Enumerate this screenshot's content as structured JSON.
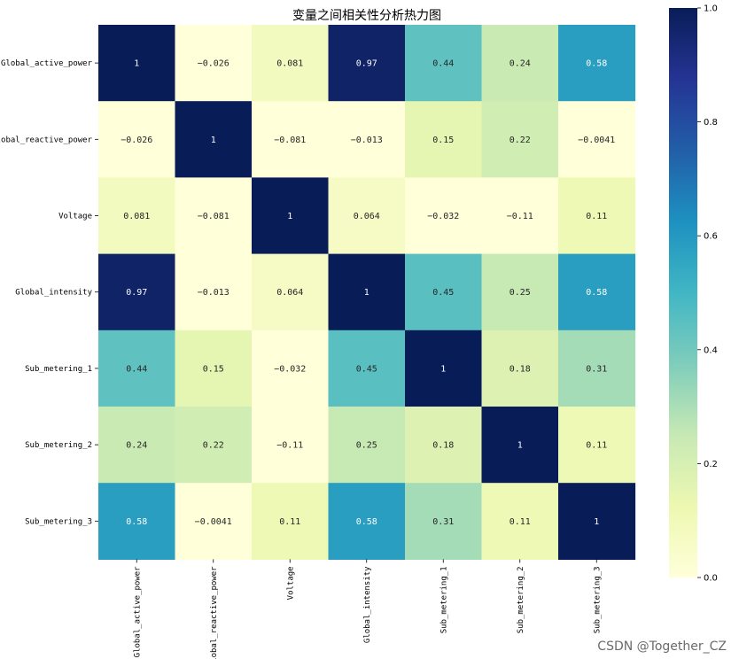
{
  "chart_data": {
    "type": "heatmap",
    "title": "变量之间相关性分析热力图",
    "labels": [
      "Global_active_power",
      "Global_reactive_power",
      "Voltage",
      "Global_intensity",
      "Sub_metering_1",
      "Sub_metering_2",
      "Sub_metering_3"
    ],
    "values": [
      [
        1,
        -0.026,
        0.081,
        0.97,
        0.44,
        0.24,
        0.58
      ],
      [
        -0.026,
        1,
        -0.081,
        -0.013,
        0.15,
        0.22,
        -0.0041
      ],
      [
        0.081,
        -0.081,
        1,
        0.064,
        -0.032,
        -0.11,
        0.11
      ],
      [
        0.97,
        -0.013,
        0.064,
        1,
        0.45,
        0.25,
        0.58
      ],
      [
        0.44,
        0.15,
        -0.032,
        0.45,
        1,
        0.18,
        0.31
      ],
      [
        0.24,
        0.22,
        -0.11,
        0.25,
        0.18,
        1,
        0.11
      ],
      [
        0.58,
        -0.0041,
        0.11,
        0.58,
        0.31,
        0.11,
        1
      ]
    ],
    "annotations": [
      [
        "1",
        "−0.026",
        "0.081",
        "0.97",
        "0.44",
        "0.24",
        "0.58"
      ],
      [
        "−0.026",
        "1",
        "−0.081",
        "−0.013",
        "0.15",
        "0.22",
        "−0.0041"
      ],
      [
        "0.081",
        "−0.081",
        "1",
        "0.064",
        "−0.032",
        "−0.11",
        "0.11"
      ],
      [
        "0.97",
        "−0.013",
        "0.064",
        "1",
        "0.45",
        "0.25",
        "0.58"
      ],
      [
        "0.44",
        "0.15",
        "−0.032",
        "0.45",
        "1",
        "0.18",
        "0.31"
      ],
      [
        "0.24",
        "0.22",
        "−0.11",
        "0.25",
        "0.18",
        "1",
        "0.11"
      ],
      [
        "0.58",
        "−0.0041",
        "0.11",
        "0.58",
        "0.31",
        "0.11",
        "1"
      ]
    ],
    "colormap": "YlGnBu",
    "vmin": 0,
    "vmax": 1,
    "colorbar": {
      "ticks": [
        0.0,
        0.2,
        0.4,
        0.6,
        0.8,
        1.0
      ],
      "tick_labels": [
        "0.0",
        "0.2",
        "0.4",
        "0.6",
        "0.8",
        "1.0"
      ]
    }
  },
  "watermark": "CSDN @Together_CZ"
}
